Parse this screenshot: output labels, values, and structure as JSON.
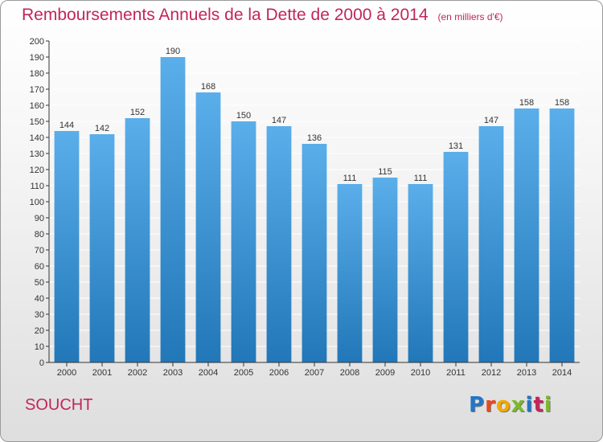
{
  "header": {
    "title": "Remboursements Annuels de la Dette de 2000 à 2014",
    "subtitle": "(en milliers d'€)"
  },
  "footer": {
    "location": "SOUCHT",
    "logo_text": "Proxiti",
    "logo_colors": [
      "#1f77c8",
      "#e8491d",
      "#f2a900",
      "#7ab929",
      "#1f77c8",
      "#c2255c",
      "#7ab929"
    ]
  },
  "colors": {
    "bar_top": "#5aaeea",
    "bar_bottom": "#2277b8",
    "title": "#c2255c",
    "axis": "#333333",
    "grid": "#ffffff"
  },
  "chart_data": {
    "type": "bar",
    "categories": [
      "2000",
      "2001",
      "2002",
      "2003",
      "2004",
      "2005",
      "2006",
      "2007",
      "2008",
      "2009",
      "2010",
      "2011",
      "2012",
      "2013",
      "2014"
    ],
    "values": [
      144,
      142,
      152,
      190,
      168,
      150,
      147,
      136,
      111,
      115,
      111,
      131,
      147,
      158,
      158
    ],
    "ylim": [
      0,
      200
    ],
    "yticks": [
      0,
      10,
      20,
      30,
      40,
      50,
      60,
      70,
      80,
      90,
      100,
      110,
      120,
      130,
      140,
      150,
      160,
      170,
      180,
      190,
      200
    ],
    "grid": true,
    "data_labels": true
  }
}
